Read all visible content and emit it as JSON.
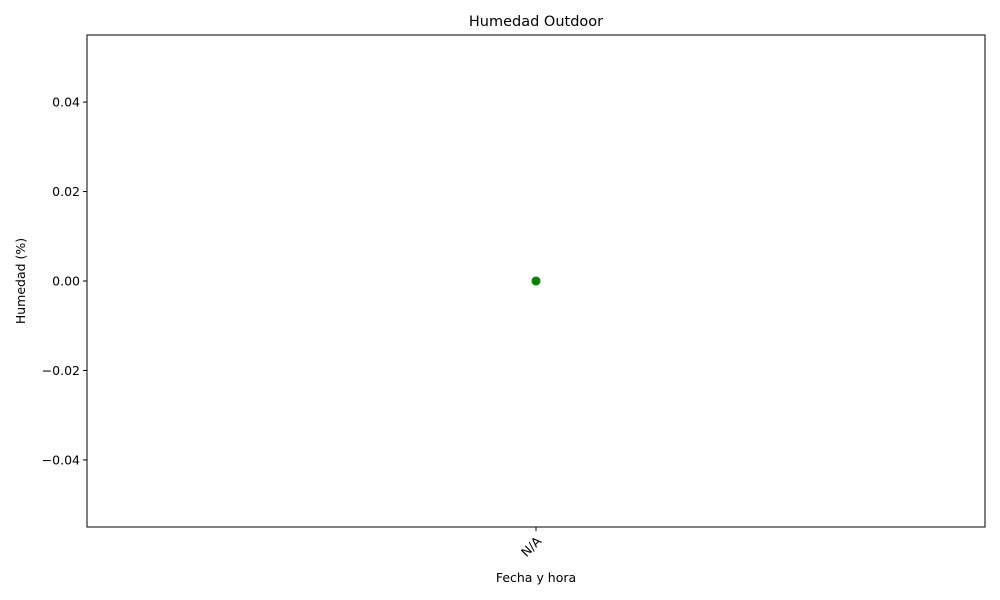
{
  "chart_data": {
    "type": "line",
    "title": "Humedad Outdoor",
    "xlabel": "Fecha y hora",
    "ylabel": "Humedad (%)",
    "categories": [
      "N/A"
    ],
    "series": [
      {
        "values": [
          0
        ],
        "color": "#008000",
        "marker": "circle"
      }
    ],
    "ylim": [
      -0.055,
      0.055
    ],
    "yticks": [
      -0.04,
      -0.02,
      0.0,
      0.02,
      0.04
    ],
    "ytick_labels": [
      "−0.04",
      "−0.02",
      "0.00",
      "0.02",
      "0.04"
    ],
    "xtick_rotation": 45,
    "grid": false,
    "legend": "none"
  }
}
